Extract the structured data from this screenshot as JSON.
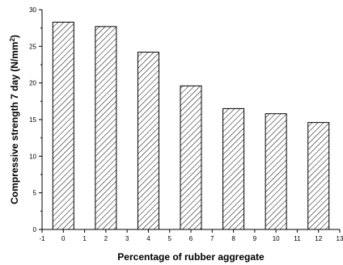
{
  "chart_data": {
    "type": "bar",
    "x": [
      0,
      2,
      4,
      6,
      8,
      10,
      12
    ],
    "values": [
      28.3,
      27.7,
      24.2,
      19.6,
      16.5,
      15.8,
      14.6
    ],
    "xlabel": "Percentage of rubber aggregate",
    "ylabel_main": "Compressive strength 7 day (N/mm",
    "ylabel_sup": "2",
    "ylabel_tail": ")",
    "xlim": [
      -1,
      13
    ],
    "ylim": [
      0,
      30
    ],
    "xticks": [
      "-1",
      "0",
      "1",
      "2",
      "3",
      "4",
      "5",
      "6",
      "7",
      "8",
      "9",
      "10",
      "11",
      "12",
      "13"
    ],
    "yticks": [
      "0",
      "5",
      "10",
      "15",
      "20",
      "25",
      "30"
    ],
    "bar_fill": "diagonal-hatch",
    "grid": false,
    "legend": "none"
  }
}
